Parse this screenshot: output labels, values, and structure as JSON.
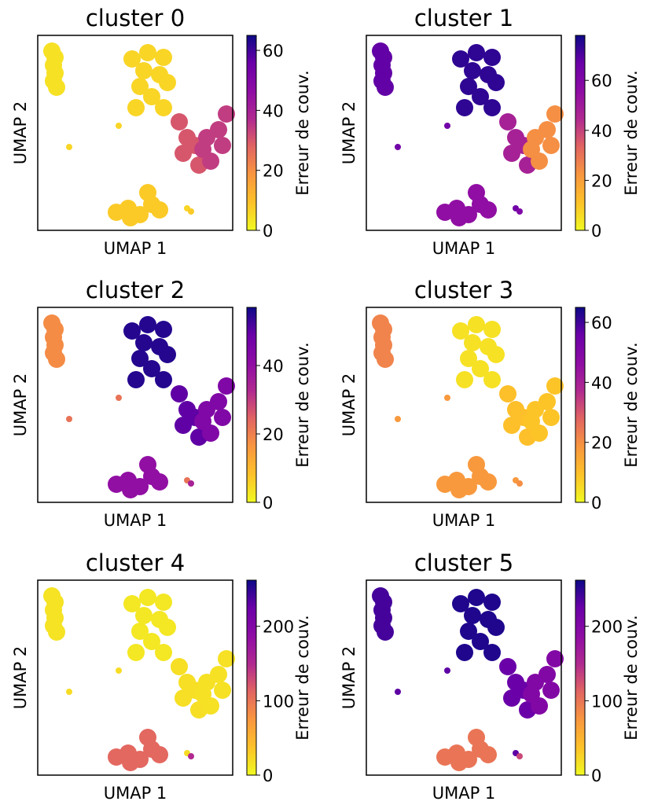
{
  "colorbar_label": "Erreur de couv.",
  "colormap": "plasma_r",
  "chart_data": [
    {
      "type": "scatter",
      "title": "cluster 0",
      "xlabel": "UMAP 1",
      "ylabel": "UMAP 2",
      "colorbar": {
        "label": "Erreur de couv.",
        "range": [
          0,
          65
        ],
        "ticks": [
          "0",
          "20",
          "40",
          "60"
        ]
      },
      "regions": {
        "left_strip": 4,
        "small_dots": 6,
        "top_blob": 6,
        "branch": 30,
        "arm": 34,
        "bottom_blob": 8,
        "right_dot": 8
      }
    },
    {
      "type": "scatter",
      "title": "cluster 1",
      "xlabel": "UMAP 1",
      "ylabel": "UMAP 2",
      "colorbar": {
        "label": "Erreur de couv.",
        "range": [
          0,
          78
        ],
        "ticks": [
          "0",
          "20",
          "40",
          "60"
        ]
      },
      "regions": {
        "left_strip": 68,
        "small_dots": 65,
        "top_blob": 74,
        "branch": 48,
        "arm": 24,
        "bottom_blob": 55,
        "right_dot": 60
      }
    },
    {
      "type": "scatter",
      "title": "cluster 2",
      "xlabel": "UMAP 1",
      "ylabel": "UMAP 2",
      "colorbar": {
        "label": "Erreur de couv.",
        "range": [
          0,
          57
        ],
        "ticks": [
          "0",
          "20",
          "40"
        ]
      },
      "regions": {
        "left_strip": 18,
        "small_dots": 22,
        "top_blob": 55,
        "branch": 50,
        "arm": 44,
        "bottom_blob": 40,
        "right_dot": 35
      }
    },
    {
      "type": "scatter",
      "title": "cluster 3",
      "xlabel": "UMAP 1",
      "ylabel": "UMAP 2",
      "colorbar": {
        "label": "Erreur de couv.",
        "range": [
          0,
          65
        ],
        "ticks": [
          "0",
          "20",
          "40",
          "60"
        ]
      },
      "regions": {
        "left_strip": 22,
        "small_dots": 18,
        "top_blob": 4,
        "branch": 10,
        "arm": 9,
        "bottom_blob": 18,
        "right_dot": 20
      }
    },
    {
      "type": "scatter",
      "title": "cluster 4",
      "xlabel": "UMAP 1",
      "ylabel": "UMAP 2",
      "colorbar": {
        "label": "Erreur de couv.",
        "range": [
          0,
          262
        ],
        "ticks": [
          "0",
          "100",
          "200"
        ]
      },
      "regions": {
        "left_strip": 15,
        "small_dots": 20,
        "top_blob": 12,
        "branch": 18,
        "arm": 16,
        "bottom_blob": 110,
        "right_dot": 150
      }
    },
    {
      "type": "scatter",
      "title": "cluster 5",
      "xlabel": "UMAP 1",
      "ylabel": "UMAP 2",
      "colorbar": {
        "label": "Erreur de couv.",
        "range": [
          0,
          262
        ],
        "ticks": [
          "0",
          "100",
          "200"
        ]
      },
      "regions": {
        "left_strip": 240,
        "small_dots": 230,
        "top_blob": 255,
        "branch": 225,
        "arm": 200,
        "bottom_blob": 100,
        "right_dot": 130
      }
    }
  ]
}
